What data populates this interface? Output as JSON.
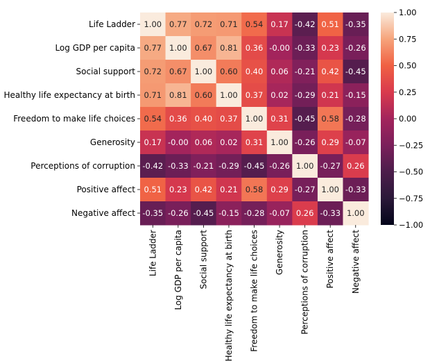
{
  "chart_data": {
    "type": "heatmap",
    "title": "",
    "xlabel": "",
    "ylabel": "",
    "labels": [
      "Life Ladder",
      "Log GDP per capita",
      "Social support",
      "Healthy life expectancy at birth",
      "Freedom to make life choices",
      "Generosity",
      "Perceptions of corruption",
      "Positive affect",
      "Negative affect"
    ],
    "values": [
      [
        1.0,
        0.77,
        0.72,
        0.71,
        0.54,
        0.17,
        -0.42,
        0.51,
        -0.35
      ],
      [
        0.77,
        1.0,
        0.67,
        0.81,
        0.36,
        -0.0,
        -0.33,
        0.23,
        -0.26
      ],
      [
        0.72,
        0.67,
        1.0,
        0.6,
        0.4,
        0.06,
        -0.21,
        0.42,
        -0.45
      ],
      [
        0.71,
        0.81,
        0.6,
        1.0,
        0.37,
        0.02,
        -0.29,
        0.21,
        -0.15
      ],
      [
        0.54,
        0.36,
        0.4,
        0.37,
        1.0,
        0.31,
        -0.45,
        0.58,
        -0.28
      ],
      [
        0.17,
        -0.0,
        0.06,
        0.02,
        0.31,
        1.0,
        -0.26,
        0.29,
        -0.07
      ],
      [
        -0.42,
        -0.33,
        -0.21,
        -0.29,
        -0.45,
        -0.26,
        1.0,
        -0.27,
        0.26
      ],
      [
        0.51,
        0.23,
        0.42,
        0.21,
        0.58,
        0.29,
        -0.27,
        1.0,
        -0.33
      ],
      [
        -0.35,
        -0.26,
        -0.45,
        -0.15,
        -0.28,
        -0.07,
        0.26,
        -0.33,
        1.0
      ]
    ],
    "annotation_format": "0.00",
    "vmin": -1.0,
    "vmax": 1.0,
    "colormap": "rocket",
    "colorbar_ticks": [
      1.0,
      0.75,
      0.5,
      0.25,
      0.0,
      -0.25,
      -0.5,
      -0.75,
      -1.0
    ],
    "colorbar_tick_labels": [
      "1.00",
      "0.75",
      "0.50",
      "0.25",
      "0.00",
      "−0.25",
      "−0.50",
      "−0.75",
      "−1.00"
    ]
  }
}
